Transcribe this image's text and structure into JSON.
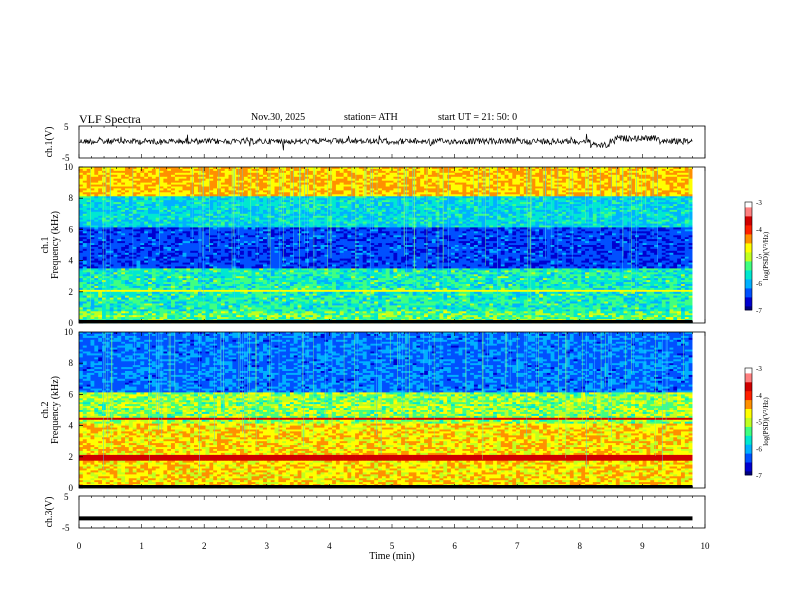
{
  "header": {
    "title": "VLF  Spectra",
    "date": "Nov.30, 2025",
    "station": "station= ATH",
    "start_ut": "start  UT  =    21: 50: 0"
  },
  "colorbar": {
    "label": "log(PSD)(V²/Hz)",
    "ticks": [
      "-3",
      "-4",
      "-5",
      "-6",
      "-7"
    ],
    "colors": [
      "#000080",
      "#0000d0",
      "#0050ff",
      "#00b0ff",
      "#00e8d0",
      "#40ff80",
      "#c0ff20",
      "#ffff00",
      "#ff9000",
      "#ff2000",
      "#d00000",
      "#ff8080",
      "#ffffff"
    ]
  },
  "chart_data": [
    {
      "type": "line",
      "name": "ch1-waveform",
      "ylabel": "ch.1(V)",
      "ylim": [
        -5,
        5
      ],
      "yticks": [
        "5",
        "-5"
      ],
      "xlim": [
        0,
        10
      ],
      "description_level": 0.2,
      "color": "#000000"
    },
    {
      "type": "heatmap",
      "name": "ch1-spectrogram",
      "ylabel": "ch.1\nFrequency (kHz)",
      "ylabel_channel": "ch.1",
      "ylabel_freq": "Frequency (kHz)",
      "ylim": [
        0,
        10
      ],
      "yticks": [
        "0",
        "2",
        "4",
        "6",
        "8",
        "10"
      ],
      "xlim": [
        0,
        10
      ],
      "data_xmax": 9.8,
      "zlim": [
        -7,
        -3
      ]
    },
    {
      "type": "heatmap",
      "name": "ch2-spectrogram",
      "ylabel_channel": "ch.2",
      "ylabel_freq": "Frequency (kHz)",
      "ylim": [
        0,
        10
      ],
      "yticks": [
        "0",
        "2",
        "4",
        "6",
        "8",
        "10"
      ],
      "xlim": [
        0,
        10
      ],
      "data_xmax": 9.8,
      "zlim": [
        -7,
        -3
      ]
    },
    {
      "type": "line",
      "name": "ch3-waveform",
      "ylabel": "ch.3(V)",
      "ylim": [
        -5,
        5
      ],
      "yticks": [
        "5",
        "-5"
      ],
      "xlim": [
        0,
        10
      ],
      "level": -2,
      "color": "#000000"
    }
  ],
  "x_axis": {
    "label": "Time (min)",
    "ticks": [
      "0",
      "1",
      "2",
      "3",
      "4",
      "5",
      "6",
      "7",
      "8",
      "9",
      "10"
    ]
  }
}
